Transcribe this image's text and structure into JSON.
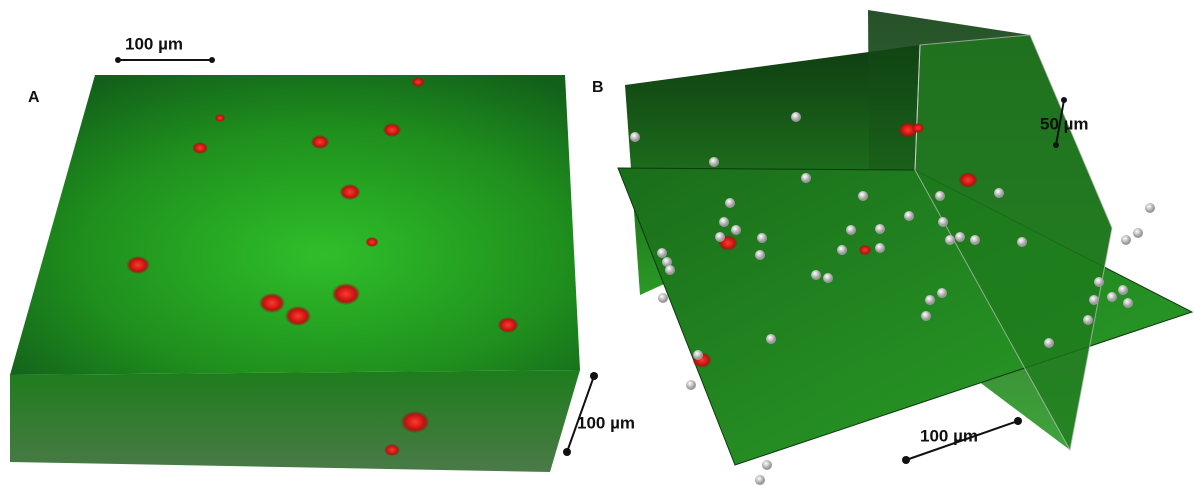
{
  "panels": [
    {
      "label": "A",
      "scale_bars": [
        "100 µm",
        "100 µm"
      ]
    },
    {
      "label": "B",
      "scale_bars": [
        "50 µm",
        "100 µm"
      ]
    }
  ]
}
